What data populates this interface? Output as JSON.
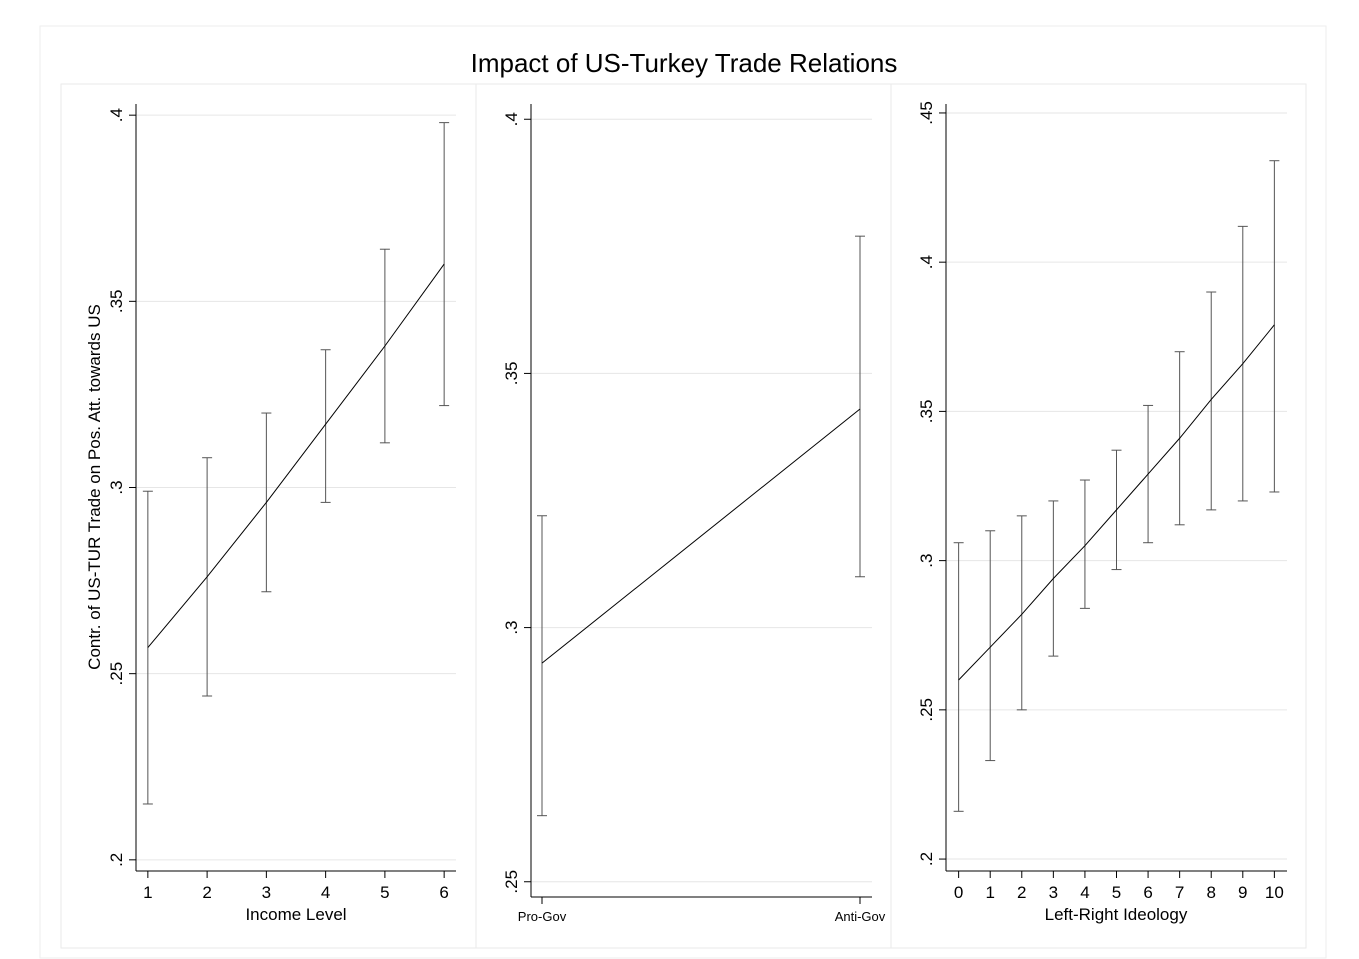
{
  "title": "Impact of US-Turkey Trade Relations",
  "ytitle": "Contr. of US-TUR Trade on Pos. Att. towards US",
  "chart_data": [
    {
      "type": "line",
      "title": "",
      "xlabel": "Income Level",
      "ylabel": "Contr. of US-TUR Trade on Pos. Att. towards US",
      "x": [
        1,
        2,
        3,
        4,
        5,
        6
      ],
      "xlim": [
        0.8,
        6.2
      ],
      "xticks": [
        1,
        2,
        3,
        4,
        5,
        6
      ],
      "ylim": [
        0.197,
        0.403
      ],
      "yticks": [
        0.2,
        0.25,
        0.3,
        0.35,
        0.4
      ],
      "ytick_labels": [
        ".2",
        ".25",
        ".3",
        ".35",
        ".4"
      ],
      "grid": true,
      "series": [
        {
          "estimate": [
            0.257,
            0.276,
            0.296,
            0.317,
            0.338,
            0.36
          ],
          "ci_lower": [
            0.215,
            0.244,
            0.272,
            0.296,
            0.312,
            0.322
          ],
          "ci_upper": [
            0.299,
            0.308,
            0.32,
            0.337,
            0.364,
            0.398
          ]
        }
      ]
    },
    {
      "type": "line",
      "title": "",
      "xlabel": "",
      "ylabel": "",
      "categories": [
        "Pro-Gov",
        "Anti-Gov"
      ],
      "ylim": [
        0.247,
        0.403
      ],
      "yticks": [
        0.25,
        0.3,
        0.35,
        0.4
      ],
      "ytick_labels": [
        ".25",
        ".3",
        ".35",
        ".4"
      ],
      "grid": true,
      "series": [
        {
          "estimate": [
            0.293,
            0.343
          ],
          "ci_lower": [
            0.263,
            0.31
          ],
          "ci_upper": [
            0.322,
            0.377
          ]
        }
      ]
    },
    {
      "type": "line",
      "title": "",
      "xlabel": "Left-Right Ideology",
      "ylabel": "",
      "x": [
        0,
        1,
        2,
        3,
        4,
        5,
        6,
        7,
        8,
        9,
        10
      ],
      "xlim": [
        -0.4,
        10.4
      ],
      "xticks": [
        0,
        1,
        2,
        3,
        4,
        5,
        6,
        7,
        8,
        9,
        10
      ],
      "ylim": [
        0.196,
        0.453
      ],
      "yticks": [
        0.2,
        0.25,
        0.3,
        0.35,
        0.4,
        0.45
      ],
      "ytick_labels": [
        ".2",
        ".25",
        ".3",
        ".35",
        ".4",
        ".45"
      ],
      "grid": true,
      "series": [
        {
          "estimate": [
            0.26,
            0.271,
            0.282,
            0.294,
            0.305,
            0.317,
            0.329,
            0.341,
            0.354,
            0.366,
            0.379
          ],
          "ci_lower": [
            0.216,
            0.233,
            0.25,
            0.268,
            0.284,
            0.297,
            0.306,
            0.312,
            0.317,
            0.32,
            0.323
          ],
          "ci_upper": [
            0.306,
            0.31,
            0.315,
            0.32,
            0.327,
            0.337,
            0.352,
            0.37,
            0.39,
            0.412,
            0.434
          ]
        }
      ]
    }
  ]
}
